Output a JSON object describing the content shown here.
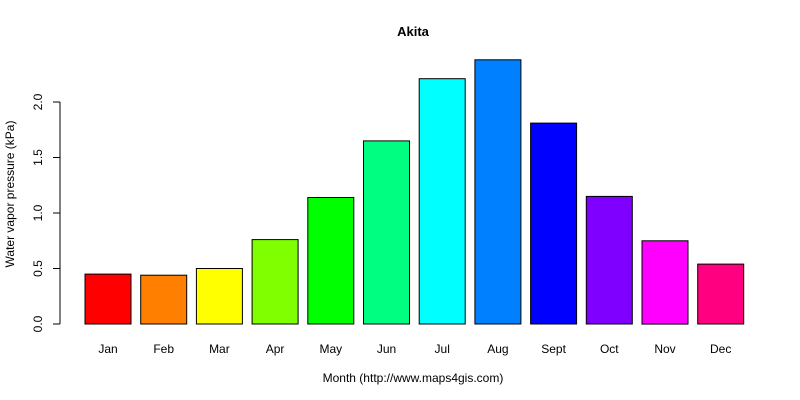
{
  "chart_data": {
    "type": "bar",
    "title": "Akita",
    "xlabel": "Month (http://www.maps4gis.com)",
    "ylabel": "Water vapor pressure (kPa)",
    "categories": [
      "Jan",
      "Feb",
      "Mar",
      "Apr",
      "May",
      "Jun",
      "Jul",
      "Aug",
      "Sept",
      "Oct",
      "Nov",
      "Dec"
    ],
    "values": [
      0.45,
      0.44,
      0.5,
      0.76,
      1.14,
      1.65,
      2.21,
      2.38,
      1.81,
      1.15,
      0.75,
      0.54
    ],
    "colors": [
      "#FF0000",
      "#FF8000",
      "#FFFF00",
      "#80FF00",
      "#00FF00",
      "#00FF80",
      "#00FFFF",
      "#0080FF",
      "#0000FF",
      "#8000FF",
      "#FF00FF",
      "#FF0080"
    ],
    "y_ticks": [
      "0.0",
      "0.5",
      "1.0",
      "1.5",
      "2.0"
    ],
    "ylim": [
      0,
      2.4
    ],
    "grid": false,
    "legend": "none"
  }
}
